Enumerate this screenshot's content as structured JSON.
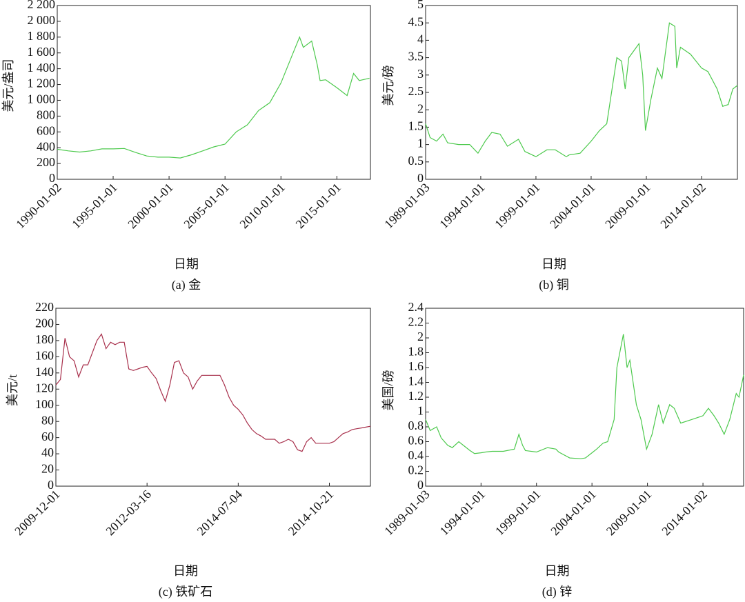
{
  "chart_data": [
    {
      "type": "line",
      "ylabel": "美元/盎司",
      "xlabel": "日期",
      "caption": "(a) 金",
      "color": "#4cc94c",
      "xlim": [
        "1990-01-02",
        "2018-01-01"
      ],
      "xticks": [
        "1990-01-02",
        "1995-01-01",
        "2000-01-01",
        "2005-01-01",
        "2010-01-01",
        "2015-01-01"
      ],
      "ylim": [
        0,
        2200
      ],
      "yticks": [
        0,
        200,
        400,
        600,
        800,
        {
          "value": 1000,
          "label": "1 000"
        },
        {
          "value": 1200,
          "label": "1 200"
        },
        {
          "value": 1400,
          "label": "1 400"
        },
        {
          "value": 1600,
          "label": "1 600"
        },
        {
          "value": 1800,
          "label": "1 800"
        },
        {
          "value": 2000,
          "label": "2 000"
        },
        {
          "value": 2200,
          "label": "2 200"
        }
      ],
      "x": [
        "1990-01-02",
        "1991-01-01",
        "1992-01-01",
        "1993-01-01",
        "1994-01-01",
        "1995-01-01",
        "1996-01-01",
        "1997-01-01",
        "1998-01-01",
        "1999-01-01",
        "2000-01-01",
        "2001-01-01",
        "2002-01-01",
        "2003-01-01",
        "2004-01-01",
        "2005-01-01",
        "2006-01-01",
        "2007-01-01",
        "2008-01-01",
        "2009-01-01",
        "2010-01-01",
        "2011-01-01",
        "2011-09-01",
        "2012-01-01",
        "2012-10-01",
        "2013-04-01",
        "2013-07-01",
        "2014-01-01",
        "2015-01-01",
        "2015-12-01",
        "2016-07-01",
        "2017-01-01",
        "2017-12-01"
      ],
      "values": [
        380,
        360,
        345,
        360,
        385,
        385,
        390,
        340,
        295,
        280,
        280,
        270,
        310,
        360,
        410,
        445,
        600,
        690,
        870,
        970,
        1220,
        1570,
        1800,
        1670,
        1750,
        1450,
        1250,
        1260,
        1160,
        1060,
        1340,
        1250,
        1280
      ]
    },
    {
      "type": "line",
      "ylabel": "美元/磅",
      "xlabel": "日期",
      "caption": "(b) 铜",
      "color": "#4cc94c",
      "xlim": [
        "1989-01-03",
        "2017-04-01"
      ],
      "xticks": [
        "1989-01-03",
        "1994-01-01",
        "1999-01-01",
        "2004-01-01",
        "2009-01-01",
        "2014-01-02"
      ],
      "ylim": [
        0,
        5
      ],
      "yticks": [
        0,
        0.5,
        1,
        1.5,
        2,
        2.5,
        3,
        3.5,
        4,
        4.5,
        5
      ],
      "x": [
        "1989-01-03",
        "1989-06-01",
        "1990-01-01",
        "1990-08-01",
        "1991-01-01",
        "1992-01-01",
        "1993-01-01",
        "1993-10-01",
        "1994-06-01",
        "1995-01-01",
        "1995-10-01",
        "1996-06-01",
        "1997-06-01",
        "1998-01-01",
        "1999-01-01",
        "2000-01-01",
        "2000-10-01",
        "2001-10-01",
        "2002-01-01",
        "2003-01-01",
        "2004-01-01",
        "2004-10-01",
        "2005-06-01",
        "2006-05-01",
        "2006-10-01",
        "2007-02-01",
        "2007-06-01",
        "2008-05-01",
        "2008-09-01",
        "2008-12-01",
        "2009-06-01",
        "2010-01-01",
        "2010-06-01",
        "2011-02-01",
        "2011-08-01",
        "2011-10-01",
        "2012-02-01",
        "2013-01-01",
        "2014-01-01",
        "2014-08-01",
        "2015-06-01",
        "2015-12-01",
        "2016-06-01",
        "2016-11-01",
        "2017-04-01"
      ],
      "values": [
        1.6,
        1.2,
        1.1,
        1.3,
        1.05,
        1.0,
        1.0,
        0.75,
        1.1,
        1.35,
        1.3,
        0.95,
        1.15,
        0.8,
        0.65,
        0.85,
        0.85,
        0.65,
        0.7,
        0.75,
        1.1,
        1.4,
        1.6,
        3.5,
        3.4,
        2.6,
        3.5,
        3.9,
        3.0,
        1.4,
        2.3,
        3.2,
        2.9,
        4.5,
        4.4,
        3.2,
        3.8,
        3.6,
        3.2,
        3.1,
        2.6,
        2.1,
        2.15,
        2.6,
        2.7
      ]
    },
    {
      "type": "line",
      "ylabel": "美元/t",
      "xlabel": "日期",
      "caption": "(c) 铁矿石",
      "color": "#a8304c",
      "ylim": [
        0,
        220
      ],
      "yticks": [
        0,
        20,
        40,
        60,
        80,
        100,
        120,
        140,
        160,
        180,
        200,
        220
      ],
      "categories": [
        "2009-12-01",
        null,
        null,
        null,
        null,
        null,
        null,
        null,
        null,
        null,
        null,
        null,
        null,
        null,
        null,
        null,
        null,
        null,
        null,
        null,
        "2012-03-16",
        null,
        null,
        null,
        null,
        null,
        null,
        null,
        null,
        null,
        null,
        null,
        null,
        null,
        null,
        null,
        null,
        null,
        null,
        null,
        "2014-07-04",
        null,
        null,
        null,
        null,
        null,
        null,
        null,
        null,
        null,
        null,
        null,
        null,
        null,
        null,
        null,
        null,
        null,
        null,
        null,
        "2014-10-21",
        null,
        null,
        null,
        null,
        null,
        null,
        null,
        null,
        null
      ],
      "values": [
        125,
        132,
        183,
        160,
        155,
        135,
        150,
        150,
        165,
        180,
        188,
        170,
        178,
        175,
        178,
        178,
        145,
        143,
        145,
        147,
        148,
        140,
        133,
        118,
        105,
        125,
        153,
        155,
        140,
        135,
        120,
        130,
        137,
        137,
        137,
        137,
        137,
        125,
        110,
        100,
        95,
        88,
        78,
        70,
        65,
        62,
        58,
        58,
        58,
        53,
        55,
        58,
        55,
        45,
        43,
        55,
        60,
        53,
        53,
        53,
        53,
        55,
        60,
        65,
        67,
        70,
        71,
        72,
        73,
        74
      ]
    },
    {
      "type": "line",
      "ylabel": "美国/磅",
      "xlabel": "日期",
      "caption": "(d) 锌",
      "color": "#4cc94c",
      "xlim": [
        "1989-01-03",
        "2017-09-01"
      ],
      "xticks": [
        "1989-01-03",
        "1994-01-01",
        "1999-01-01",
        "2004-01-01",
        "2009-01-01",
        "2014-01-02"
      ],
      "ylim": [
        0,
        2.4
      ],
      "yticks": [
        0,
        0.2,
        0.4,
        0.6,
        0.8,
        1,
        1.2,
        1.4,
        1.6,
        1.8,
        2,
        2.2,
        2.4
      ],
      "x": [
        "1989-01-03",
        "1989-06-01",
        "1990-01-01",
        "1990-06-01",
        "1991-01-01",
        "1991-06-01",
        "1992-01-01",
        "1992-06-01",
        "1993-01-01",
        "1993-06-01",
        "1994-01-01",
        "1994-06-01",
        "1995-01-01",
        "1996-01-01",
        "1997-01-01",
        "1997-06-01",
        "1997-10-01",
        "1998-01-01",
        "1999-01-01",
        "2000-01-01",
        "2000-10-01",
        "2001-01-01",
        "2002-01-01",
        "2003-01-01",
        "2003-06-01",
        "2004-01-01",
        "2004-06-01",
        "2005-01-01",
        "2005-06-01",
        "2006-01-01",
        "2006-04-01",
        "2006-11-01",
        "2007-03-01",
        "2007-06-01",
        "2008-01-01",
        "2008-06-01",
        "2008-12-01",
        "2009-06-01",
        "2010-01-01",
        "2010-06-01",
        "2011-01-01",
        "2011-06-01",
        "2012-01-01",
        "2013-01-01",
        "2014-01-01",
        "2014-07-01",
        "2015-01-01",
        "2015-06-01",
        "2015-12-01",
        "2016-06-01",
        "2017-01-01",
        "2017-04-01",
        "2017-09-01"
      ],
      "values": [
        0.9,
        0.75,
        0.8,
        0.65,
        0.55,
        0.52,
        0.6,
        0.55,
        0.48,
        0.44,
        0.45,
        0.46,
        0.47,
        0.47,
        0.5,
        0.7,
        0.55,
        0.48,
        0.46,
        0.52,
        0.5,
        0.46,
        0.38,
        0.37,
        0.38,
        0.45,
        0.5,
        0.58,
        0.6,
        0.9,
        1.6,
        2.05,
        1.6,
        1.7,
        1.1,
        0.9,
        0.5,
        0.7,
        1.1,
        0.85,
        1.1,
        1.05,
        0.85,
        0.9,
        0.95,
        1.05,
        0.95,
        0.85,
        0.7,
        0.9,
        1.25,
        1.2,
        1.5
      ]
    }
  ]
}
